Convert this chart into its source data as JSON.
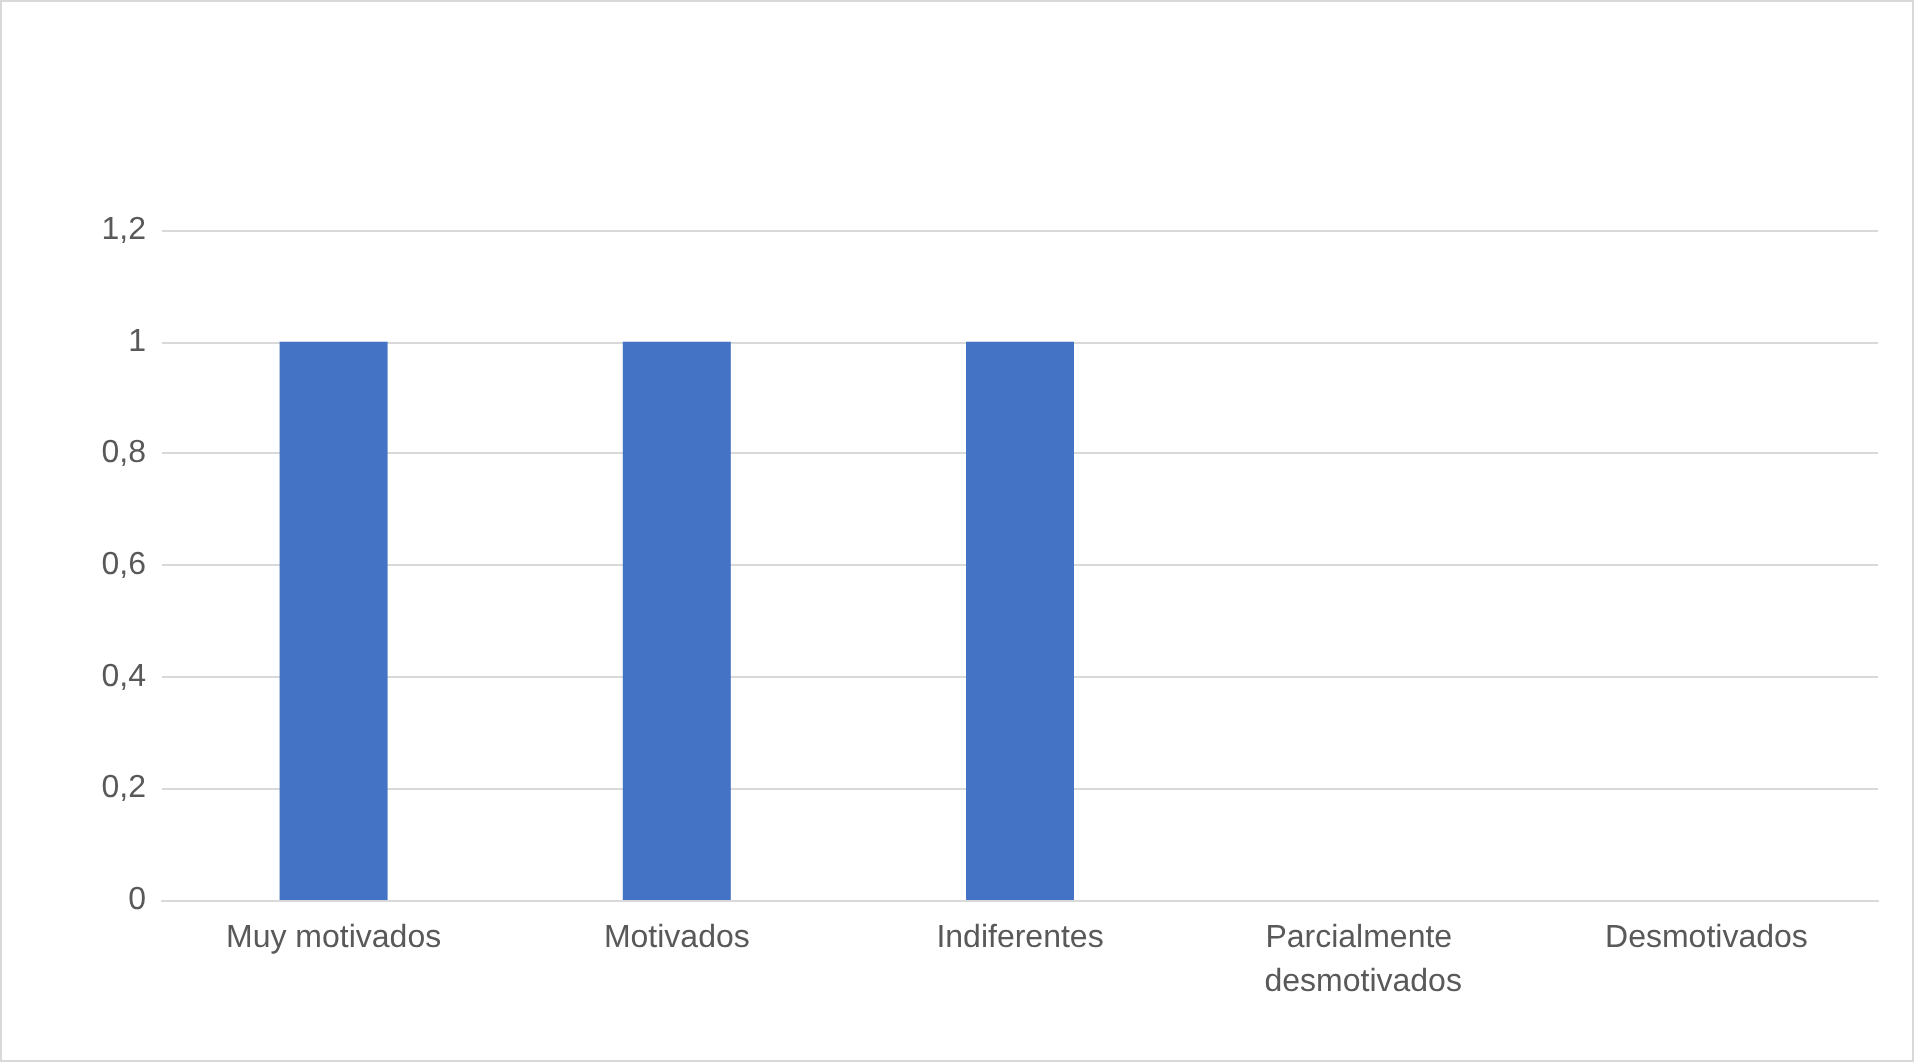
{
  "chart_data": {
    "type": "bar",
    "categories": [
      "Muy motivados",
      "Motivados",
      "Indiferentes",
      "Parcialmente desmotivados",
      "Desmotivados"
    ],
    "values": [
      1,
      1,
      1,
      0,
      0
    ],
    "color": "#4472c4",
    "ylim": [
      0,
      1.2
    ],
    "yticks": [
      0,
      {
        "value": 0.2,
        "label": "0,2"
      },
      {
        "value": 0.4,
        "label": "0,4"
      },
      {
        "value": 0.6,
        "label": "0,6"
      },
      {
        "value": 0.8,
        "label": "0,8"
      },
      1,
      {
        "value": 1.2,
        "label": "1,2"
      }
    ],
    "grid": true
  }
}
